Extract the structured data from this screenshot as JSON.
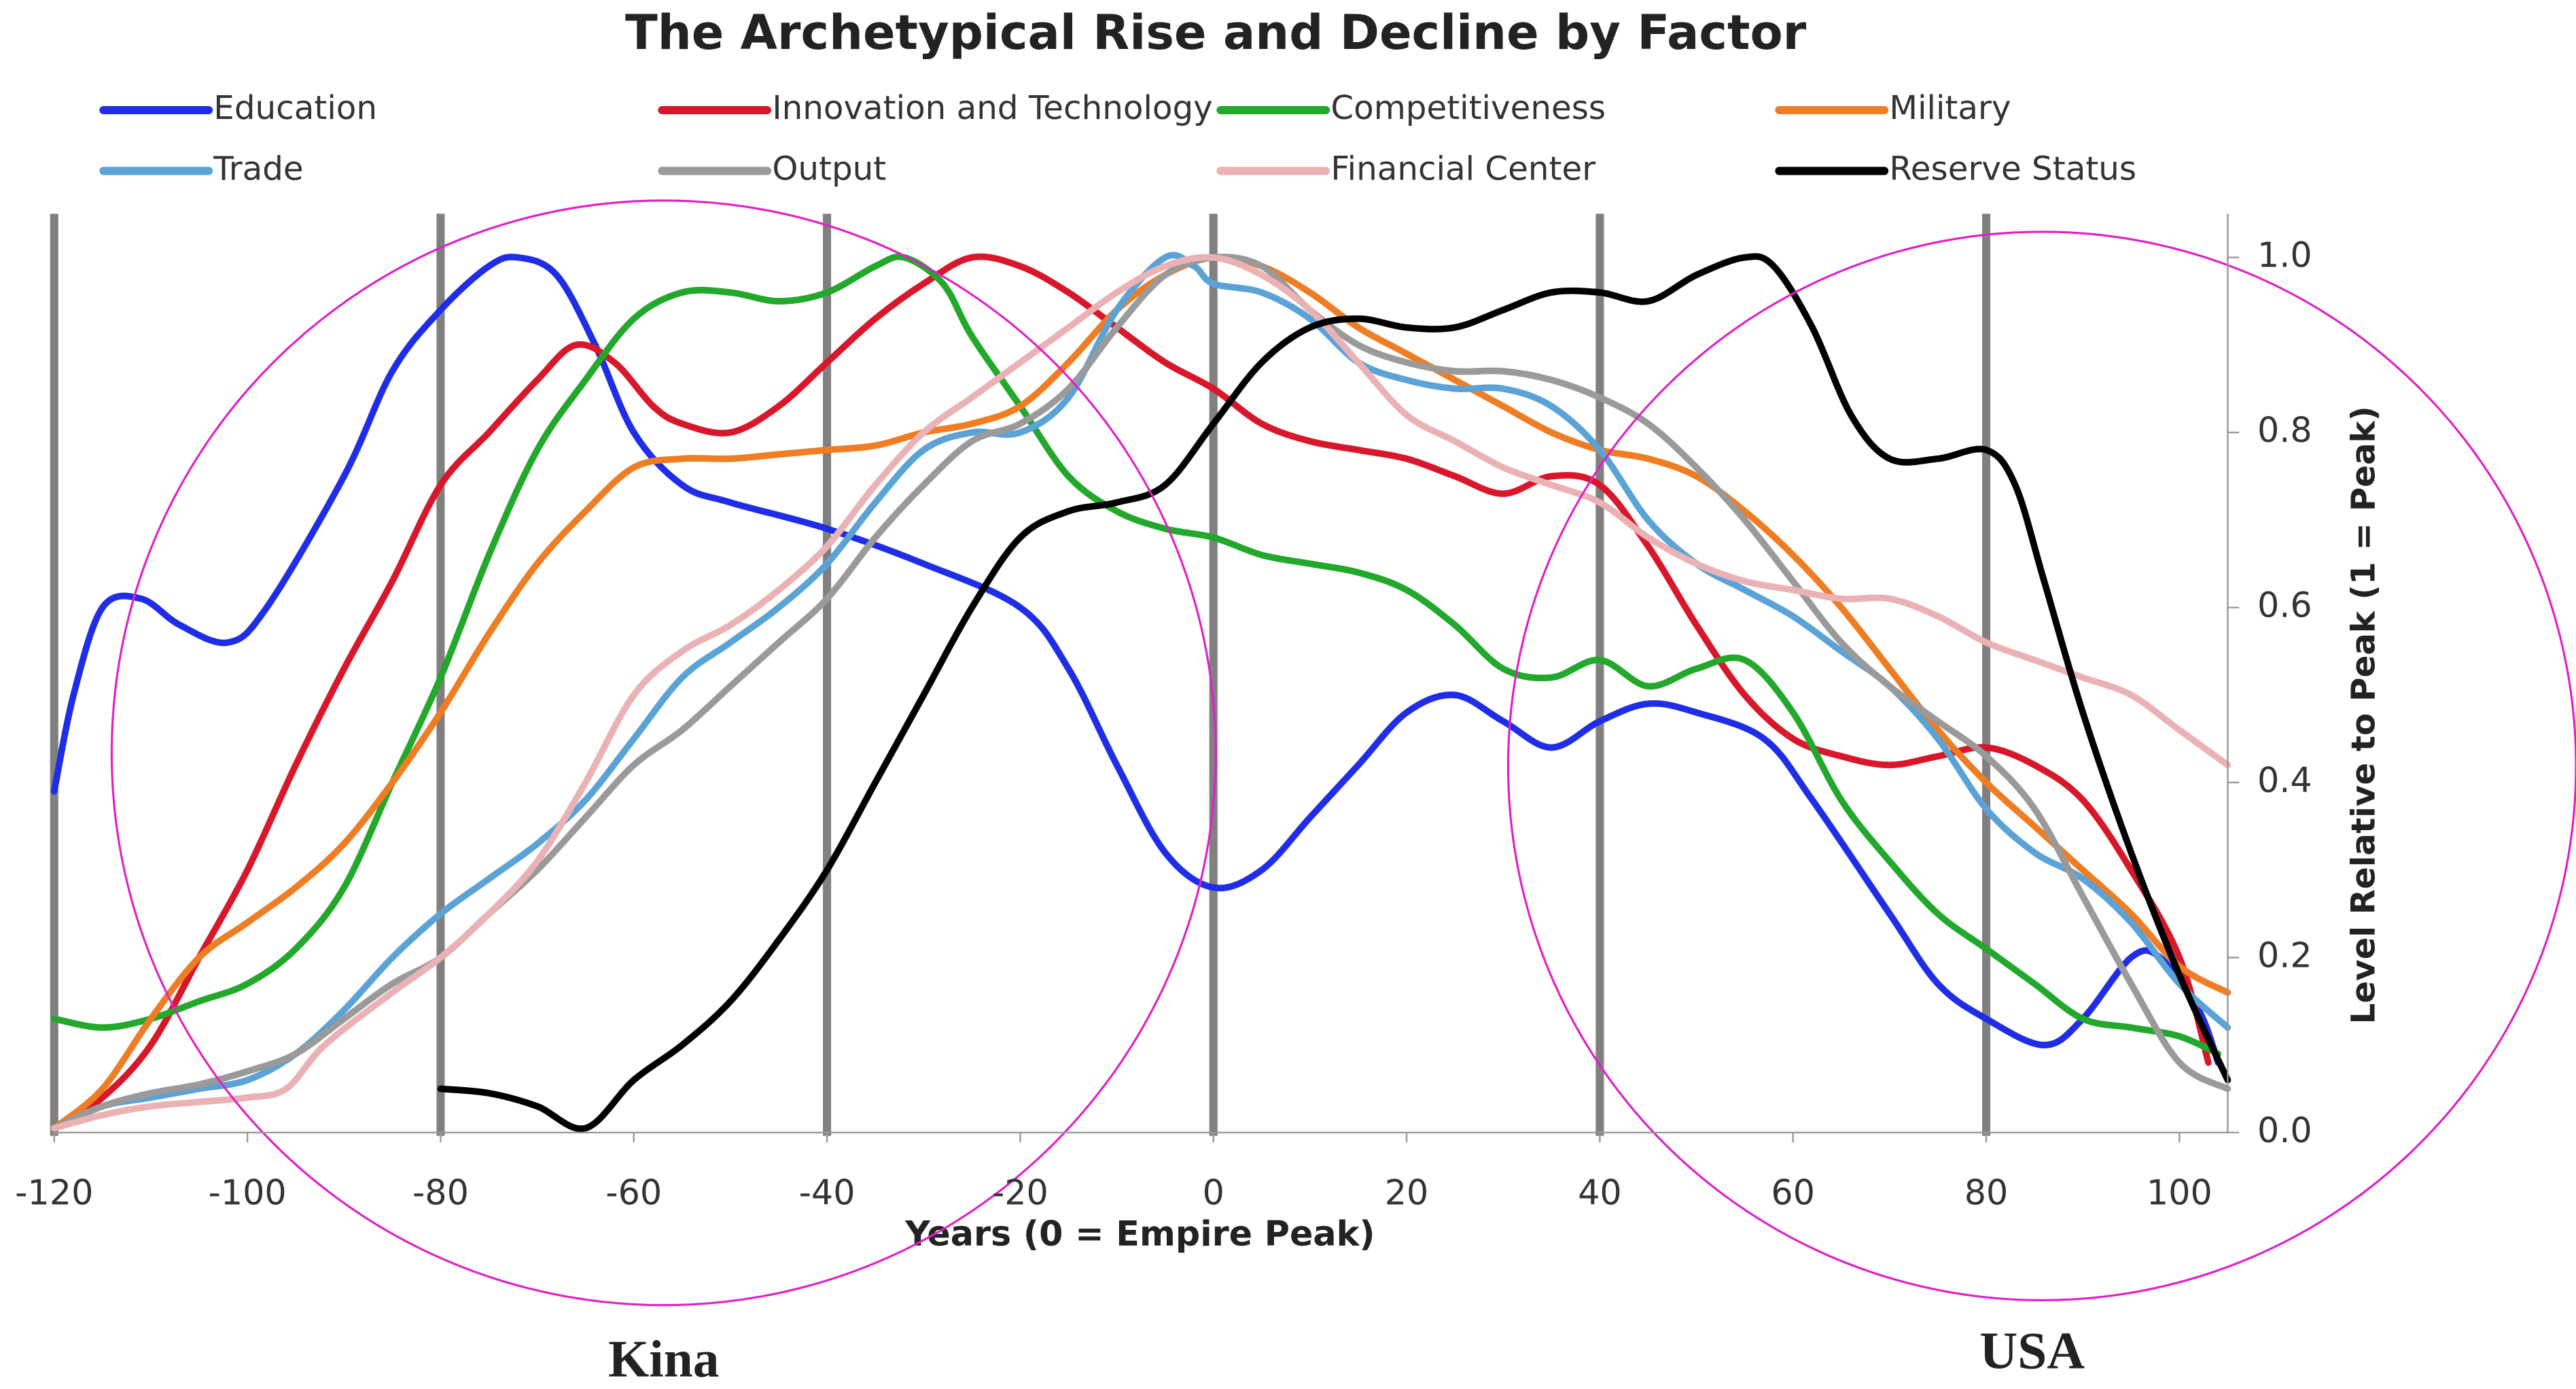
{
  "chart_data": {
    "type": "line",
    "title": "The Archetypical Rise and Decline by Factor",
    "x_label": "Years (0 = Empire Peak)",
    "y_label": "Level Relative to Peak (1 = Peak)",
    "y_axis_side": "right",
    "xlim": [
      -120,
      105
    ],
    "ylim": [
      0,
      1.05
    ],
    "xticks": [
      -120,
      -100,
      -80,
      -60,
      -40,
      -20,
      0,
      20,
      40,
      60,
      80,
      100
    ],
    "yticks": [
      {
        "value": 0,
        "label": "0.0"
      },
      0.2,
      0.4,
      0.6,
      0.8,
      {
        "value": 1,
        "label": "1.0"
      }
    ],
    "reference_lines": [
      -120,
      -80,
      -40,
      0,
      40,
      80
    ],
    "reference_color": "#808080",
    "annotations": [
      "Kina",
      "USA"
    ],
    "series": [
      {
        "name": "Education",
        "color": "#1f2ee6",
        "x": [
          -120,
          -118,
          -115,
          -111,
          -107,
          -102,
          -98,
          -90,
          -85,
          -80,
          -75,
          -72,
          -68,
          -64,
          -60,
          -55,
          -50,
          -40,
          -30,
          -20,
          -15,
          -10,
          -5,
          0,
          5,
          10,
          15,
          20,
          25,
          30,
          35,
          40,
          45,
          50,
          57,
          62,
          70,
          75,
          80,
          86,
          90,
          95,
          98,
          102,
          104
        ],
        "values": [
          0.39,
          0.5,
          0.6,
          0.61,
          0.58,
          0.56,
          0.6,
          0.75,
          0.87,
          0.94,
          0.99,
          1.0,
          0.98,
          0.9,
          0.8,
          0.74,
          0.72,
          0.69,
          0.65,
          0.6,
          0.53,
          0.42,
          0.32,
          0.28,
          0.3,
          0.36,
          0.42,
          0.48,
          0.5,
          0.47,
          0.44,
          0.47,
          0.49,
          0.48,
          0.45,
          0.38,
          0.25,
          0.17,
          0.13,
          0.1,
          0.13,
          0.2,
          0.2,
          0.14,
          0.08
        ]
      },
      {
        "name": "Innovation and Technology",
        "color": "#d9172b",
        "x": [
          -120,
          -115,
          -110,
          -105,
          -100,
          -95,
          -90,
          -85,
          -80,
          -75,
          -70,
          -66,
          -62,
          -58,
          -55,
          -50,
          -45,
          -40,
          -35,
          -30,
          -25,
          -20,
          -15,
          -10,
          -5,
          0,
          5,
          10,
          15,
          20,
          25,
          30,
          35,
          40,
          45,
          50,
          55,
          60,
          65,
          70,
          75,
          80,
          85,
          90,
          95,
          100,
          103
        ],
        "values": [
          0.005,
          0.04,
          0.1,
          0.2,
          0.3,
          0.42,
          0.53,
          0.63,
          0.74,
          0.8,
          0.86,
          0.9,
          0.88,
          0.83,
          0.81,
          0.8,
          0.83,
          0.88,
          0.93,
          0.97,
          1.0,
          0.99,
          0.96,
          0.92,
          0.88,
          0.85,
          0.81,
          0.79,
          0.78,
          0.77,
          0.75,
          0.73,
          0.75,
          0.74,
          0.67,
          0.58,
          0.5,
          0.45,
          0.43,
          0.42,
          0.43,
          0.44,
          0.42,
          0.38,
          0.3,
          0.2,
          0.08
        ]
      },
      {
        "name": "Competitiveness",
        "color": "#22a82a",
        "x": [
          -120,
          -115,
          -110,
          -105,
          -100,
          -95,
          -90,
          -85,
          -80,
          -75,
          -70,
          -65,
          -60,
          -55,
          -50,
          -45,
          -40,
          -35,
          -32,
          -28,
          -25,
          -20,
          -15,
          -10,
          -5,
          0,
          5,
          10,
          15,
          20,
          25,
          30,
          35,
          40,
          45,
          50,
          55,
          60,
          65,
          70,
          75,
          80,
          85,
          90,
          95,
          100,
          104
        ],
        "values": [
          0.13,
          0.12,
          0.13,
          0.15,
          0.17,
          0.21,
          0.28,
          0.4,
          0.52,
          0.66,
          0.78,
          0.86,
          0.93,
          0.96,
          0.96,
          0.95,
          0.96,
          0.99,
          1.0,
          0.97,
          0.91,
          0.83,
          0.75,
          0.71,
          0.69,
          0.68,
          0.66,
          0.65,
          0.64,
          0.62,
          0.58,
          0.53,
          0.52,
          0.54,
          0.51,
          0.53,
          0.54,
          0.48,
          0.38,
          0.31,
          0.25,
          0.21,
          0.17,
          0.13,
          0.12,
          0.11,
          0.09
        ]
      },
      {
        "name": "Military",
        "color": "#ee7d23",
        "x": [
          -120,
          -115,
          -110,
          -105,
          -100,
          -95,
          -90,
          -85,
          -80,
          -75,
          -70,
          -65,
          -60,
          -55,
          -50,
          -45,
          -40,
          -35,
          -30,
          -25,
          -20,
          -15,
          -10,
          -5,
          0,
          5,
          10,
          15,
          20,
          25,
          30,
          35,
          40,
          45,
          50,
          55,
          60,
          65,
          70,
          75,
          80,
          85,
          90,
          95,
          100,
          105
        ],
        "values": [
          0.005,
          0.05,
          0.13,
          0.2,
          0.24,
          0.28,
          0.33,
          0.4,
          0.48,
          0.57,
          0.65,
          0.71,
          0.76,
          0.77,
          0.77,
          0.775,
          0.78,
          0.785,
          0.8,
          0.81,
          0.83,
          0.88,
          0.94,
          0.98,
          1.0,
          0.99,
          0.96,
          0.92,
          0.89,
          0.86,
          0.83,
          0.8,
          0.78,
          0.77,
          0.75,
          0.71,
          0.66,
          0.6,
          0.53,
          0.46,
          0.4,
          0.35,
          0.3,
          0.25,
          0.19,
          0.16
        ]
      },
      {
        "name": "Trade",
        "color": "#5ba3d6",
        "x": [
          -120,
          -115,
          -110,
          -105,
          -100,
          -95,
          -90,
          -85,
          -80,
          -75,
          -70,
          -65,
          -60,
          -55,
          -50,
          -45,
          -40,
          -35,
          -30,
          -25,
          -20,
          -15,
          -10,
          -5,
          -2,
          0,
          5,
          10,
          15,
          20,
          25,
          30,
          35,
          40,
          45,
          50,
          55,
          60,
          65,
          70,
          75,
          80,
          85,
          90,
          95,
          100,
          105
        ],
        "values": [
          0.005,
          0.03,
          0.04,
          0.05,
          0.06,
          0.09,
          0.14,
          0.2,
          0.25,
          0.29,
          0.33,
          0.38,
          0.45,
          0.52,
          0.56,
          0.6,
          0.65,
          0.72,
          0.78,
          0.8,
          0.8,
          0.84,
          0.94,
          1.0,
          0.99,
          0.97,
          0.96,
          0.93,
          0.88,
          0.86,
          0.85,
          0.85,
          0.83,
          0.78,
          0.7,
          0.65,
          0.62,
          0.59,
          0.55,
          0.51,
          0.45,
          0.37,
          0.32,
          0.29,
          0.24,
          0.17,
          0.12
        ]
      },
      {
        "name": "Output",
        "color": "#9a9a9a",
        "x": [
          -120,
          -115,
          -110,
          -105,
          -100,
          -95,
          -90,
          -85,
          -80,
          -75,
          -70,
          -65,
          -60,
          -55,
          -50,
          -45,
          -40,
          -35,
          -30,
          -25,
          -20,
          -15,
          -10,
          -5,
          0,
          5,
          10,
          15,
          20,
          25,
          30,
          35,
          40,
          45,
          50,
          55,
          60,
          65,
          70,
          75,
          80,
          85,
          90,
          95,
          100,
          105
        ],
        "values": [
          0.005,
          0.03,
          0.045,
          0.055,
          0.07,
          0.09,
          0.13,
          0.17,
          0.2,
          0.25,
          0.3,
          0.36,
          0.42,
          0.46,
          0.51,
          0.56,
          0.61,
          0.68,
          0.74,
          0.79,
          0.81,
          0.85,
          0.92,
          0.98,
          1.0,
          0.99,
          0.94,
          0.9,
          0.88,
          0.87,
          0.87,
          0.86,
          0.84,
          0.81,
          0.76,
          0.7,
          0.63,
          0.56,
          0.51,
          0.47,
          0.43,
          0.37,
          0.27,
          0.17,
          0.08,
          0.05
        ]
      },
      {
        "name": "Financial Center",
        "color": "#eab2b4",
        "x": [
          -120,
          -115,
          -110,
          -105,
          -100,
          -96,
          -92,
          -85,
          -80,
          -75,
          -70,
          -65,
          -60,
          -55,
          -50,
          -45,
          -40,
          -35,
          -30,
          -25,
          -20,
          -15,
          -10,
          -5,
          0,
          5,
          10,
          15,
          20,
          25,
          30,
          35,
          40,
          45,
          50,
          55,
          60,
          65,
          70,
          75,
          80,
          85,
          90,
          95,
          100,
          105
        ],
        "values": [
          0.005,
          0.02,
          0.03,
          0.035,
          0.04,
          0.05,
          0.1,
          0.16,
          0.2,
          0.25,
          0.31,
          0.4,
          0.5,
          0.55,
          0.58,
          0.62,
          0.67,
          0.74,
          0.8,
          0.84,
          0.88,
          0.92,
          0.96,
          0.99,
          1.0,
          0.98,
          0.94,
          0.88,
          0.82,
          0.79,
          0.76,
          0.74,
          0.72,
          0.68,
          0.65,
          0.63,
          0.62,
          0.61,
          0.61,
          0.59,
          0.56,
          0.54,
          0.52,
          0.5,
          0.46,
          0.42
        ]
      },
      {
        "name": "Reserve Status",
        "color": "#000000",
        "x": [
          -80,
          -75,
          -70,
          -65,
          -60,
          -55,
          -50,
          -45,
          -40,
          -35,
          -30,
          -25,
          -20,
          -15,
          -10,
          -5,
          0,
          5,
          10,
          15,
          20,
          25,
          30,
          35,
          40,
          45,
          50,
          55,
          58,
          62,
          66,
          70,
          75,
          80,
          83,
          86,
          90,
          95,
          100,
          105
        ],
        "values": [
          0.05,
          0.045,
          0.03,
          0.005,
          0.06,
          0.1,
          0.15,
          0.22,
          0.3,
          0.4,
          0.5,
          0.6,
          0.68,
          0.71,
          0.72,
          0.74,
          0.81,
          0.88,
          0.92,
          0.93,
          0.92,
          0.92,
          0.94,
          0.96,
          0.96,
          0.95,
          0.98,
          1.0,
          0.99,
          0.92,
          0.82,
          0.77,
          0.77,
          0.78,
          0.74,
          0.63,
          0.48,
          0.32,
          0.18,
          0.06
        ]
      }
    ]
  }
}
